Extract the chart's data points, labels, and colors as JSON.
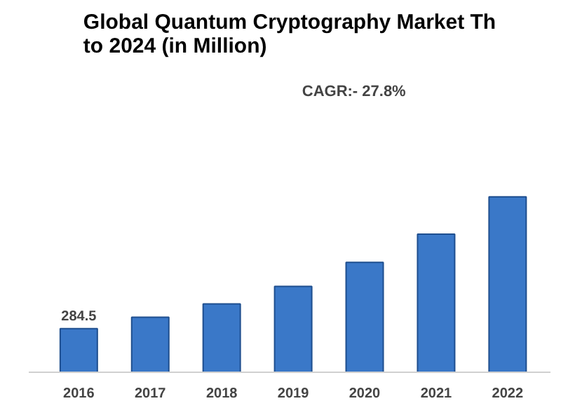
{
  "chart_data": {
    "type": "bar",
    "title": "Global Quantum Cryptography Market Th\nto 2024 (in Million)",
    "categories": [
      "2016",
      "2017",
      "2018",
      "2019",
      "2020",
      "2021",
      "2022"
    ],
    "values": [
      284.5,
      359,
      446,
      561,
      718,
      902,
      1146
    ],
    "color": "#3a78c8",
    "value_labels": [
      "284.5",
      null,
      null,
      null,
      null,
      null,
      null
    ],
    "annotations": [
      "CAGR:- 27.8%"
    ],
    "tick_labels": "x",
    "grid": false
  }
}
